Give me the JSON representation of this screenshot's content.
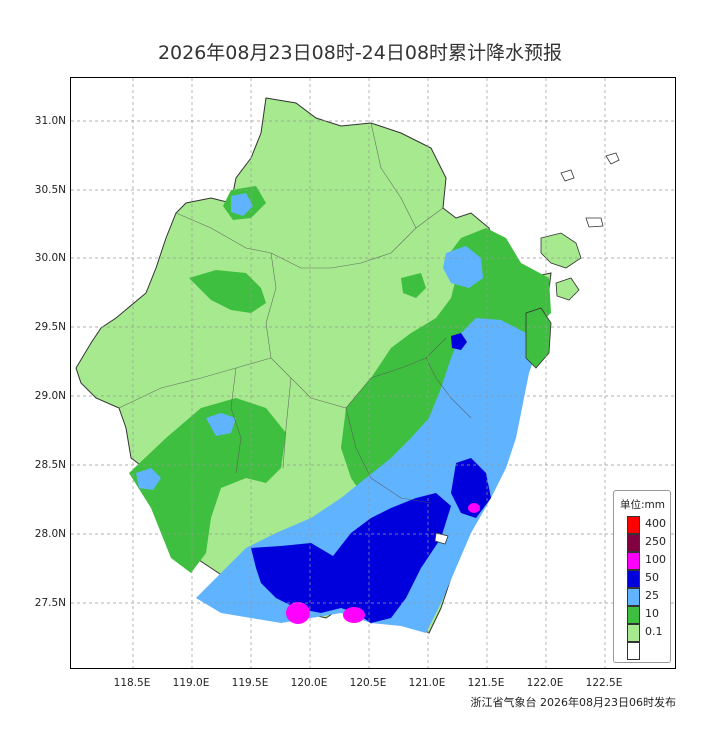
{
  "title": "2026年08月23日08时-24日08时累计降水预报",
  "credit": "浙江省气象台 2026年08月23日06时发布",
  "map": {
    "lat_ticks": [
      "31.0N",
      "30.5N",
      "30.0N",
      "29.5N",
      "29.0N",
      "28.5N",
      "28.0N",
      "27.5N"
    ],
    "lon_ticks": [
      "118.5E",
      "119.0E",
      "119.5E",
      "120.0E",
      "120.5E",
      "121.0E",
      "121.5E",
      "122.0E",
      "122.5E"
    ]
  },
  "legend": {
    "title": "单位:mm",
    "items": [
      {
        "label": "400",
        "color": "#ff0000"
      },
      {
        "label": "250",
        "color": "#800040"
      },
      {
        "label": "100",
        "color": "#ff00ff"
      },
      {
        "label": "50",
        "color": "#0000dd"
      },
      {
        "label": "25",
        "color": "#5fb3ff"
      },
      {
        "label": "10",
        "color": "#3fbf3f"
      },
      {
        "label": "0.1",
        "color": "#a6e98f"
      },
      {
        "label": "",
        "color": "#ffffff"
      }
    ]
  },
  "colors": {
    "light_green": "#a6e98f",
    "green": "#3fbf3f",
    "light_blue": "#5fb3ff",
    "blue": "#0000dd",
    "magenta": "#ff00ff"
  }
}
